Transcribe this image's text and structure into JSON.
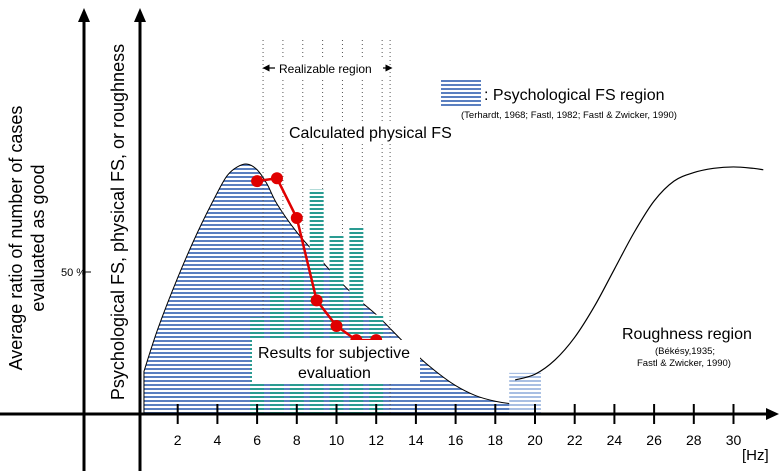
{
  "chart_data": {
    "type": "area",
    "x_tick_labels": [
      "2",
      "4",
      "6",
      "8",
      "10",
      "12",
      "14",
      "16",
      "18",
      "20",
      "22",
      "24",
      "26",
      "28",
      "30"
    ],
    "x_unit": "[Hz]",
    "xlim": [
      0,
      31.5
    ],
    "y_tick_label": "50 %",
    "y_tick_value": 50,
    "ylim": [
      0,
      100
    ],
    "ylabel_outer": {
      "line1": "Average ratio of number of cases",
      "line2": "evaluated as good"
    },
    "ylabel_inner": "Psychological FS, physical FS, or roughness",
    "series": [
      {
        "name": ": Psychological FS region",
        "kind": "hatched-area",
        "color": "#5a7fc0",
        "x": [
          0.3,
          1,
          2,
          3,
          4,
          4.5,
          5,
          5.5,
          6,
          6.5,
          7,
          8,
          9,
          10,
          11,
          12,
          13,
          14,
          15,
          16,
          17,
          18,
          19,
          20
        ],
        "y": [
          15,
          30,
          48,
          64,
          78,
          84,
          87,
          88,
          86,
          81,
          74,
          64,
          56,
          48,
          41,
          35,
          28,
          21,
          15,
          10,
          6.5,
          4.5,
          3.5,
          3.5
        ]
      },
      {
        "name": "Roughness region",
        "kind": "curve",
        "color": "#000000",
        "x": [
          19,
          20,
          21,
          22,
          23,
          24,
          25,
          26,
          27,
          28,
          29,
          30,
          31,
          31.5
        ],
        "y": [
          12,
          14,
          19,
          27,
          38,
          51,
          64,
          75,
          82,
          85,
          86.5,
          87,
          86.5,
          86
        ]
      },
      {
        "name": "Calculated physical FS",
        "kind": "line-markers",
        "color": "#e00000",
        "x": [
          6,
          7,
          8,
          9,
          10,
          11,
          12
        ],
        "y": [
          82,
          83,
          69,
          40,
          31,
          26,
          26
        ]
      },
      {
        "name": "Results for subjective evaluation",
        "kind": "bars",
        "color": "#2a9b92",
        "x": [
          6,
          7,
          8,
          9,
          10,
          11,
          12
        ],
        "values": [
          34,
          43,
          50,
          79,
          63,
          66,
          35
        ]
      }
    ],
    "realizable_region": {
      "label": "Realizable region",
      "from": 6.3,
      "to": 12.7
    },
    "grid_lines_x": [
      6.3,
      7.3,
      8.3,
      9.3,
      10.3,
      11.3,
      12.3,
      12.7
    ],
    "annotations": {
      "psych_fs_ref": "(Terhardt, 1968; Fastl, 1982; Fastl & Zwicker, 1990)",
      "calc_label": "Calculated physical FS",
      "results_line1": "Results for subjective",
      "results_line2": "evaluation",
      "roughness_title": "Roughness region",
      "roughness_ref1": "(Békésy,1935;",
      "roughness_ref2": "Fastl & Zwicker, 1990)"
    }
  }
}
